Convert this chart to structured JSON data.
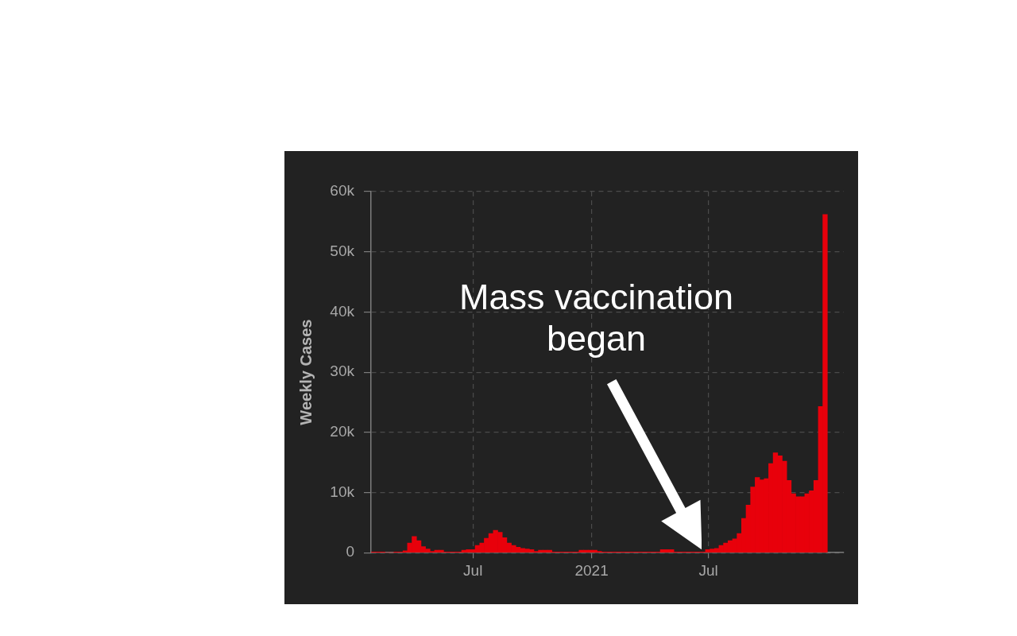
{
  "chart_data": {
    "type": "bar",
    "ylabel": "Weekly Cases",
    "x": [
      "2020-01-29",
      "2020-02-05",
      "2020-02-12",
      "2020-02-19",
      "2020-02-26",
      "2020-03-04",
      "2020-03-11",
      "2020-03-18",
      "2020-03-25",
      "2020-04-01",
      "2020-04-08",
      "2020-04-15",
      "2020-04-22",
      "2020-04-29",
      "2020-05-06",
      "2020-05-13",
      "2020-05-20",
      "2020-05-27",
      "2020-06-03",
      "2020-06-10",
      "2020-06-17",
      "2020-06-24",
      "2020-07-01",
      "2020-07-08",
      "2020-07-15",
      "2020-07-22",
      "2020-07-29",
      "2020-08-05",
      "2020-08-12",
      "2020-08-19",
      "2020-08-26",
      "2020-09-02",
      "2020-09-09",
      "2020-09-16",
      "2020-09-23",
      "2020-09-30",
      "2020-10-07",
      "2020-10-14",
      "2020-10-21",
      "2020-10-28",
      "2020-11-04",
      "2020-11-11",
      "2020-11-18",
      "2020-11-25",
      "2020-12-02",
      "2020-12-09",
      "2020-12-16",
      "2020-12-23",
      "2020-12-30",
      "2021-01-06",
      "2021-01-13",
      "2021-01-20",
      "2021-01-27",
      "2021-02-03",
      "2021-02-10",
      "2021-02-17",
      "2021-02-24",
      "2021-03-03",
      "2021-03-10",
      "2021-03-17",
      "2021-03-24",
      "2021-03-31",
      "2021-04-07",
      "2021-04-14",
      "2021-04-21",
      "2021-04-28",
      "2021-05-05",
      "2021-05-12",
      "2021-05-19",
      "2021-05-26",
      "2021-06-02",
      "2021-06-09",
      "2021-06-16",
      "2021-06-23",
      "2021-06-30",
      "2021-07-07",
      "2021-07-14",
      "2021-07-21",
      "2021-07-28",
      "2021-08-04",
      "2021-08-11",
      "2021-08-18",
      "2021-08-25",
      "2021-09-01",
      "2021-09-08",
      "2021-09-15",
      "2021-09-22",
      "2021-09-29",
      "2021-10-06",
      "2021-10-13",
      "2021-10-20",
      "2021-10-27",
      "2021-11-03",
      "2021-11-10",
      "2021-11-17",
      "2021-11-24",
      "2021-12-01",
      "2021-12-08",
      "2021-12-15",
      "2021-12-22",
      "2021-12-29"
    ],
    "values": [
      100,
      100,
      100,
      0,
      0,
      100,
      100,
      300,
      1600,
      2700,
      2000,
      1000,
      600,
      200,
      400,
      400,
      100,
      100,
      100,
      100,
      400,
      500,
      500,
      1200,
      1600,
      2400,
      3200,
      3700,
      3400,
      2500,
      1600,
      1200,
      900,
      700,
      600,
      500,
      200,
      400,
      400,
      400,
      100,
      100,
      100,
      100,
      100,
      100,
      400,
      400,
      400,
      400,
      200,
      100,
      100,
      100,
      100,
      100,
      100,
      100,
      100,
      100,
      100,
      100,
      100,
      100,
      500,
      500,
      500,
      100,
      100,
      100,
      100,
      100,
      100,
      100,
      500,
      600,
      700,
      1200,
      1600,
      2000,
      2300,
      3200,
      5700,
      7900,
      10900,
      12500,
      12100,
      12300,
      14800,
      16600,
      16100,
      15200,
      12000,
      9800,
      9300,
      9300,
      9800,
      10300,
      12000,
      24300,
      56200
    ],
    "color": "#e8000b",
    "xlim": [
      "2020-01-25",
      "2022-01-27"
    ],
    "xticks": [
      {
        "value": "2020-07-01",
        "label": "Jul"
      },
      {
        "value": "2021-01-01",
        "label": "2021"
      },
      {
        "value": "2021-07-01",
        "label": "Jul"
      }
    ],
    "ylim": [
      0,
      60000
    ],
    "yticks": [
      0,
      {
        "value": 10000,
        "label": "10k"
      },
      {
        "value": 20000,
        "label": "20k"
      },
      {
        "value": 30000,
        "label": "30k"
      },
      {
        "value": 40000,
        "label": "40k"
      },
      {
        "value": 50000,
        "label": "50k"
      },
      {
        "value": 60000,
        "label": "60k"
      }
    ],
    "grid": true,
    "annotations": [
      "Mass vaccination began"
    ]
  }
}
